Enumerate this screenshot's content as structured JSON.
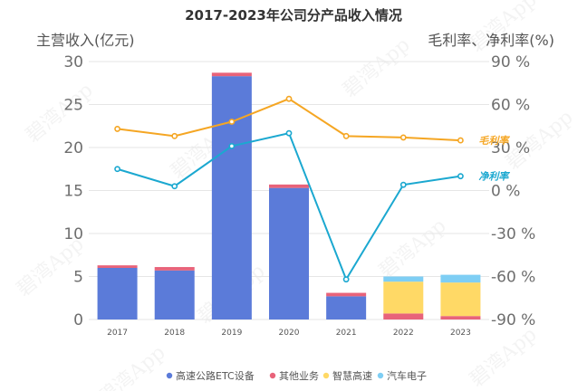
{
  "chart_data": {
    "type": "bar",
    "title": "2017-2023年公司分产品收入情况",
    "ylabel": "主营收入(亿元)",
    "y2label": "毛利率、净利率(%)",
    "ylim": [
      0,
      30
    ],
    "y2lim": [
      -90,
      90
    ],
    "y_ticks": [
      "0",
      "5",
      "10",
      "15",
      "20",
      "25",
      "30"
    ],
    "y2_ticks": [
      "-90 %",
      "-60 %",
      "-30 %",
      "0 %",
      "30 %",
      "60 %",
      "90 %"
    ],
    "categories": [
      "2017",
      "2018",
      "2019",
      "2020",
      "2021",
      "2022",
      "2023"
    ],
    "stacked": true,
    "grid": true,
    "legend_position": "bottom",
    "series": [
      {
        "name": "高速公路ETC设备",
        "type": "bar",
        "color": "#5b7bd9",
        "values": [
          6.0,
          5.7,
          28.3,
          15.3,
          2.7,
          0.0,
          0.0
        ]
      },
      {
        "name": "其他业务",
        "type": "bar",
        "color": "#e8637a",
        "values": [
          0.3,
          0.4,
          0.4,
          0.4,
          0.4,
          0.7,
          0.4
        ]
      },
      {
        "name": "智慧高速",
        "type": "bar",
        "color": "#ffd966",
        "values": [
          0.0,
          0.0,
          0.0,
          0.0,
          0.0,
          3.7,
          3.9
        ]
      },
      {
        "name": "汽车电子",
        "type": "bar",
        "color": "#7ecef4",
        "values": [
          0.0,
          0.0,
          0.0,
          0.0,
          0.0,
          0.6,
          0.9
        ]
      },
      {
        "name": "毛利率",
        "type": "line",
        "axis": "right",
        "color": "#f5a623",
        "values": [
          43,
          38,
          48,
          64,
          38,
          37,
          35
        ]
      },
      {
        "name": "净利率",
        "type": "line",
        "axis": "right",
        "color": "#1ba8d0",
        "values": [
          15,
          3,
          31,
          40,
          -62,
          4,
          10
        ]
      }
    ],
    "legend_entries": [
      "高速公路ETC设备",
      "其他业务",
      "智慧高速",
      "汽车电子"
    ],
    "line_labels": [
      "毛利率",
      "净利率"
    ]
  },
  "watermark": "碧湾App"
}
